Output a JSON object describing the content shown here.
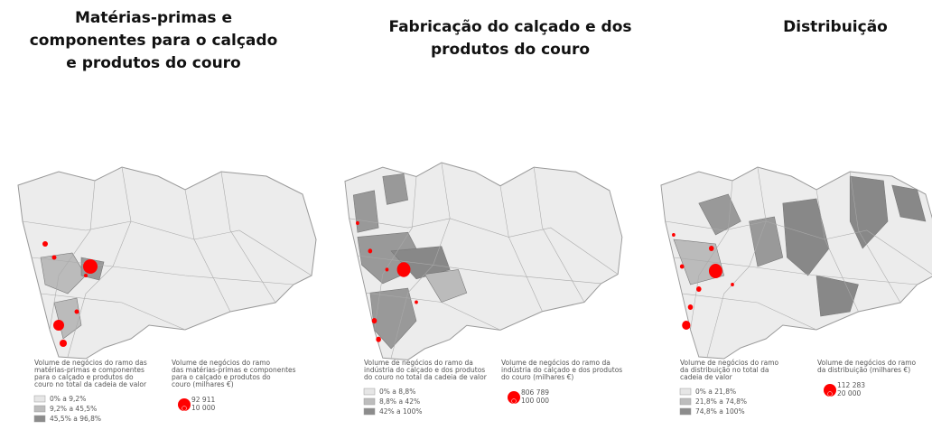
{
  "panels": [
    {
      "title": [
        "Matérias-primas e",
        "componentes para o calçado",
        "e produtos do couro"
      ],
      "share_legend": {
        "title": [
          "Volume de negócios do ramo das",
          "matérias-primas e componentes",
          "para o calçado e produtos do",
          "couro no total da cadeia de valor"
        ],
        "classes": [
          "0% a 9,2%",
          "9,2% a 45,5%",
          "45,5% a 96,8%"
        ]
      },
      "volume_legend": {
        "title": [
          "Volume de negócios do ramo",
          "das matérias-primas e componentes",
          "para o calçado e produtos do",
          "couro (milhares €)"
        ],
        "sizes": [
          "92 911",
          "10 000"
        ]
      }
    },
    {
      "title": [
        "Fabricação do calçado e dos",
        "produtos do couro"
      ],
      "share_legend": {
        "title": [
          "Volume de negócios do ramo da",
          "indústria do calçado e dos produtos",
          "do couro no total da cadeia de valor"
        ],
        "classes": [
          "0% a 8,8%",
          "8,8% a 42%",
          "42% a 100%"
        ]
      },
      "volume_legend": {
        "title": [
          "Volume de negócios do ramo da",
          "indústria do calçado e dos produtos",
          "do couro (milhares €)"
        ],
        "sizes": [
          "806 789",
          "100 000"
        ]
      }
    },
    {
      "title": [
        "Distribuição"
      ],
      "share_legend": {
        "title": [
          "Volume de negócios do ramo",
          "da distribuição no total da",
          "cadeia de valor"
        ],
        "classes": [
          "0% a 21,8%",
          "21,8% a 74,8%",
          "74,8% a 100%"
        ]
      },
      "volume_legend": {
        "title": [
          "Volume de negócios do ramo",
          "da distribuição (milhares €)"
        ],
        "sizes": [
          "112 283",
          "20 000"
        ]
      }
    }
  ]
}
